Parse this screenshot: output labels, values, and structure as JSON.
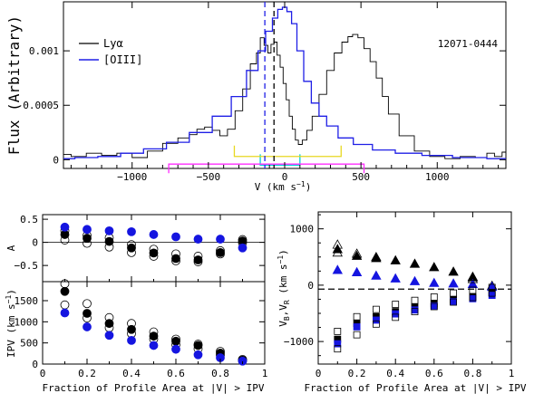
{
  "chart_data": [
    {
      "type": "line",
      "panel": "top",
      "object_label": "12071-0444",
      "xlabel": "V (km s⁻¹)",
      "ylabel": "Flux (Arbitrary)",
      "xlim": [
        -1450,
        1450
      ],
      "ylim": [
        -8e-05,
        0.00145
      ],
      "xticks": [
        -1000,
        -500,
        0,
        500,
        1000
      ],
      "xtick_labels": [
        "−1000",
        "−500",
        "0",
        "500",
        "1000"
      ],
      "yticks": [
        0,
        0.0005,
        0.001
      ],
      "ytick_labels": [
        "0",
        "0.0005",
        "0.001"
      ],
      "legend": {
        "placement": "top-left",
        "entries": [
          {
            "label": "Lyα",
            "color": "#000000"
          },
          {
            "label": "[OIII]",
            "color": "#1f1fe6"
          }
        ]
      },
      "series": [
        {
          "name": "Lyα",
          "color": "#000000",
          "x": [
            -1450,
            -1350,
            -1250,
            -1150,
            -1050,
            -950,
            -850,
            -750,
            -650,
            -600,
            -550,
            -500,
            -450,
            -400,
            -350,
            -300,
            -250,
            -200,
            -170,
            -150,
            -120,
            -100,
            -80,
            -60,
            -40,
            -20,
            0,
            20,
            40,
            60,
            80,
            100,
            130,
            160,
            200,
            250,
            300,
            350,
            400,
            430,
            460,
            500,
            540,
            580,
            620,
            660,
            700,
            800,
            900,
            1000,
            1100,
            1200,
            1300,
            1350,
            1400,
            1450
          ],
          "y": [
            5e-05,
            3e-05,
            6e-05,
            4e-05,
            6e-05,
            2e-05,
            8e-05,
            0.00015,
            0.0002,
            0.00023,
            0.00028,
            0.0003,
            0.00027,
            0.00022,
            0.00028,
            0.00045,
            0.00065,
            0.00088,
            0.00098,
            0.00112,
            0.00105,
            0.00098,
            0.00106,
            0.00108,
            0.00096,
            0.00085,
            0.0007,
            0.00055,
            0.0004,
            0.00028,
            0.00018,
            0.00014,
            0.00018,
            0.00027,
            0.0004,
            0.0006,
            0.00082,
            0.00098,
            0.00108,
            0.00113,
            0.00115,
            0.00112,
            0.00102,
            0.0009,
            0.00075,
            0.00058,
            0.00042,
            0.00022,
            8e-05,
            3e-05,
            1e-05,
            3e-05,
            2e-05,
            6e-05,
            3e-05,
            7e-05
          ]
        },
        {
          "name": "[OIII]",
          "color": "#1f1fe6",
          "x": [
            -1450,
            -1300,
            -1150,
            -1000,
            -850,
            -700,
            -550,
            -400,
            -300,
            -200,
            -150,
            -100,
            -60,
            -30,
            0,
            30,
            60,
            100,
            150,
            200,
            250,
            300,
            400,
            500,
            650,
            800,
            1000,
            1200,
            1450
          ],
          "y": [
            1e-05,
            2e-05,
            3e-05,
            6e-05,
            0.0001,
            0.00016,
            0.00025,
            0.0004,
            0.00058,
            0.00082,
            0.001,
            0.00118,
            0.0013,
            0.00138,
            0.0014,
            0.00136,
            0.00125,
            0.001,
            0.00072,
            0.00052,
            0.0004,
            0.00031,
            0.0002,
            0.00014,
            9e-05,
            6e-05,
            4e-05,
            2e-05,
            1e-05
          ]
        }
      ],
      "markers": [
        {
          "name": "blue-dashed-line",
          "x": -130,
          "color": "#1f1fe6"
        },
        {
          "name": "black-dashed-line",
          "x": -70,
          "color": "#000000"
        }
      ],
      "brackets": [
        {
          "name": "cyan-bracket",
          "color": "#00d0d8",
          "x1": -160,
          "x2": 100,
          "y": -5e-05
        },
        {
          "name": "yellow-bracket",
          "color": "#e8d820",
          "x1": -330,
          "x2": 370,
          "y": 3e-05
        },
        {
          "name": "magenta-bracket",
          "color": "#ff2cff",
          "x1": -760,
          "x2": 520,
          "y": -4e-05
        }
      ]
    },
    {
      "type": "scatter",
      "panel": "bottom-left-upper",
      "ylabel": "A",
      "xlim": [
        0,
        1
      ],
      "ylim": [
        -0.85,
        0.6
      ],
      "yticks": [
        -0.5,
        0,
        0.5
      ],
      "ytick_labels": [
        "−0.5",
        "0",
        "0.5"
      ],
      "zero_line": 0,
      "series": [
        {
          "name": "blue-filled",
          "x": [
            0.1,
            0.2,
            0.3,
            0.4,
            0.5,
            0.6,
            0.7,
            0.8,
            0.9
          ],
          "y": [
            0.33,
            0.28,
            0.25,
            0.23,
            0.17,
            0.12,
            0.07,
            0.07,
            -0.12
          ]
        },
        {
          "name": "black-filled",
          "x": [
            0.1,
            0.2,
            0.3,
            0.4,
            0.5,
            0.6,
            0.7,
            0.8,
            0.9
          ],
          "y": [
            0.17,
            0.09,
            0.02,
            -0.12,
            -0.23,
            -0.35,
            -0.38,
            -0.22,
            0.03
          ]
        },
        {
          "name": "open-1",
          "x": [
            0.1,
            0.2,
            0.3,
            0.4,
            0.5,
            0.6,
            0.7,
            0.8,
            0.9
          ],
          "y": [
            0.25,
            0.15,
            0.1,
            -0.05,
            -0.15,
            -0.25,
            -0.3,
            -0.18,
            0.06
          ]
        },
        {
          "name": "open-2",
          "x": [
            0.1,
            0.2,
            0.3,
            0.4,
            0.5,
            0.6,
            0.7,
            0.8,
            0.9
          ],
          "y": [
            0.05,
            -0.02,
            -0.1,
            -0.22,
            -0.3,
            -0.4,
            -0.42,
            -0.25,
            -0.01
          ]
        }
      ]
    },
    {
      "type": "scatter",
      "panel": "bottom-left-lower",
      "xlabel": "Fraction of Profile Area at |V| > IPV",
      "ylabel": "IPV (km s⁻¹)",
      "xlim": [
        0,
        1
      ],
      "ylim": [
        0,
        1950
      ],
      "xticks": [
        0,
        0.2,
        0.4,
        0.6,
        0.8,
        1
      ],
      "xtick_labels": [
        "0",
        "0.2",
        "0.4",
        "0.6",
        "0.8",
        "1"
      ],
      "yticks": [
        0,
        500,
        1000,
        1500
      ],
      "ytick_labels": [
        "0",
        "500",
        "1000",
        "1500"
      ],
      "series": [
        {
          "name": "blue-filled",
          "x": [
            0.1,
            0.2,
            0.3,
            0.4,
            0.5,
            0.6,
            0.7,
            0.8,
            0.9
          ],
          "y": [
            1210,
            880,
            680,
            560,
            440,
            350,
            220,
            150,
            70
          ]
        },
        {
          "name": "black-filled",
          "x": [
            0.1,
            0.2,
            0.3,
            0.4,
            0.5,
            0.6,
            0.7,
            0.8,
            0.9
          ],
          "y": [
            1720,
            1200,
            960,
            820,
            660,
            540,
            440,
            260,
            90
          ]
        },
        {
          "name": "open-1",
          "x": [
            0.1,
            0.2,
            0.3,
            0.4,
            0.5,
            0.6,
            0.7,
            0.8,
            0.9
          ],
          "y": [
            1900,
            1430,
            1100,
            960,
            760,
            590,
            470,
            300,
            110
          ]
        },
        {
          "name": "open-2",
          "x": [
            0.1,
            0.2,
            0.3,
            0.4,
            0.5,
            0.6,
            0.7,
            0.8,
            0.9
          ],
          "y": [
            1400,
            1090,
            860,
            720,
            590,
            460,
            360,
            210,
            80
          ]
        }
      ]
    },
    {
      "type": "scatter",
      "panel": "bottom-right",
      "xlabel": "Fraction of Profile Area at |V| > IPV",
      "ylabel": "Vʙ,Vʀ (km s⁻¹)",
      "ylabel_parts": {
        "main": "V",
        "sub1": "B",
        "sep": ",V",
        "sub2": "R",
        "unit": " (km s",
        "sup": "−1",
        "close": ")"
      },
      "xlim": [
        0,
        1
      ],
      "ylim": [
        -1400,
        1300
      ],
      "xticks": [
        0,
        0.2,
        0.4,
        0.6,
        0.8,
        1
      ],
      "xtick_labels": [
        "0",
        "0.2",
        "0.4",
        "0.6",
        "0.8",
        "1"
      ],
      "yticks": [
        -1000,
        0,
        1000
      ],
      "ytick_labels": [
        "−1000",
        "0",
        "1000"
      ],
      "dashed_line": -70,
      "series": [
        {
          "name": "black-filled-triangle",
          "x": [
            0.1,
            0.2,
            0.3,
            0.4,
            0.5,
            0.6,
            0.7,
            0.8,
            0.9
          ],
          "y": [
            640,
            520,
            480,
            440,
            380,
            320,
            240,
            140,
            -10
          ]
        },
        {
          "name": "blue-filled-triangle",
          "x": [
            0.1,
            0.2,
            0.3,
            0.4,
            0.5,
            0.6,
            0.7,
            0.8,
            0.9
          ],
          "y": [
            270,
            230,
            170,
            120,
            70,
            40,
            30,
            20,
            -30
          ]
        },
        {
          "name": "open-triangle",
          "x": [
            0.1,
            0.2,
            0.3,
            0.8
          ],
          "y": [
            720,
            560,
            500,
            150
          ]
        },
        {
          "name": "open-triangle-2",
          "x": [
            0.1,
            0.8
          ],
          "y": [
            580,
            110
          ]
        },
        {
          "name": "black-filled-square",
          "x": [
            0.1,
            0.2,
            0.3,
            0.4,
            0.5,
            0.6,
            0.7,
            0.8,
            0.9
          ],
          "y": [
            -960,
            -680,
            -560,
            -470,
            -390,
            -330,
            -260,
            -210,
            -130
          ]
        },
        {
          "name": "blue-filled-square",
          "x": [
            0.1,
            0.2,
            0.3,
            0.4,
            0.5,
            0.6,
            0.7,
            0.8,
            0.9
          ],
          "y": [
            -1040,
            -740,
            -620,
            -510,
            -440,
            -370,
            -290,
            -240,
            -180
          ]
        },
        {
          "name": "open-square-1",
          "x": [
            0.1,
            0.2,
            0.3,
            0.4,
            0.5,
            0.6,
            0.7,
            0.8,
            0.9
          ],
          "y": [
            -820,
            -560,
            -430,
            -340,
            -270,
            -210,
            -140,
            -90,
            -40
          ]
        },
        {
          "name": "open-square-2",
          "x": [
            0.1,
            0.2,
            0.3,
            0.4,
            0.5,
            0.6,
            0.7,
            0.8,
            0.9
          ],
          "y": [
            -1130,
            -880,
            -690,
            -570,
            -470,
            -380,
            -300,
            -220,
            -140
          ]
        }
      ]
    }
  ]
}
